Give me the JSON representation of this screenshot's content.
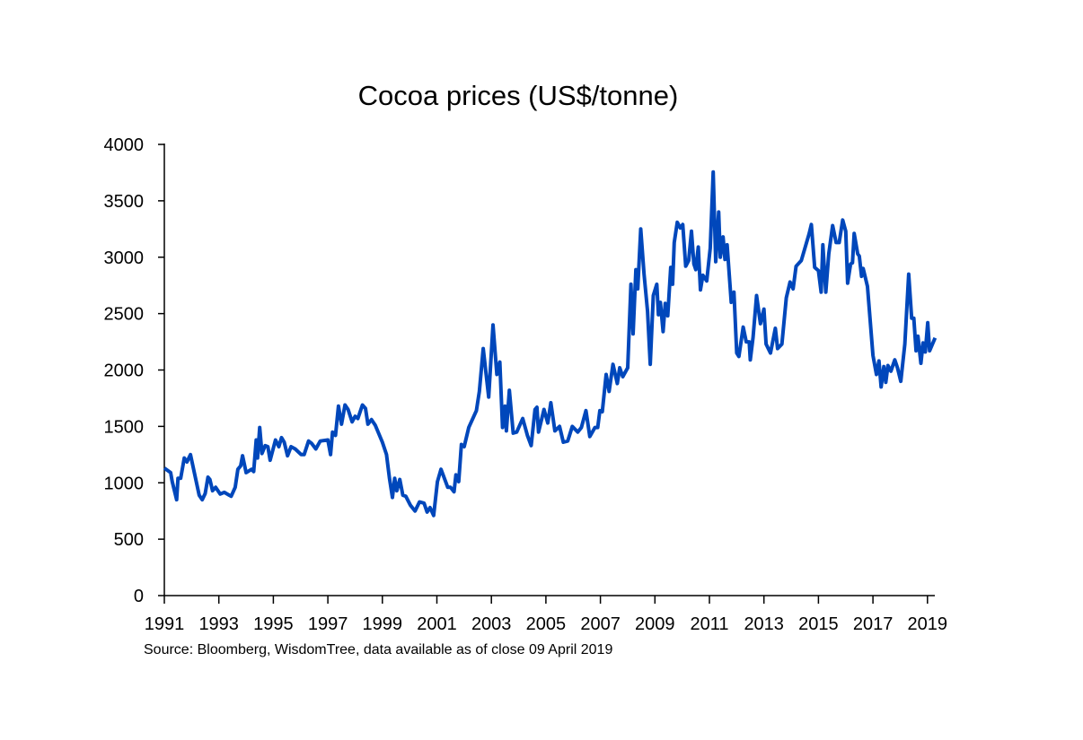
{
  "chart_data": {
    "type": "line",
    "title": "Cocoa prices (US$/tonne)",
    "xlabel": "",
    "ylabel": "",
    "source": "Source: Bloomberg, WisdomTree, data available as of close 09 April 2019",
    "xlim": [
      1991,
      2019.3
    ],
    "ylim": [
      0,
      4000
    ],
    "x_ticks": [
      "1991",
      "1993",
      "1995",
      "1997",
      "1999",
      "2001",
      "2003",
      "2005",
      "2007",
      "2009",
      "2011",
      "2013",
      "2015",
      "2017",
      "2019"
    ],
    "y_ticks": [
      "0",
      "500",
      "1000",
      "1500",
      "2000",
      "2500",
      "3000",
      "3500",
      "4000"
    ],
    "grid": false,
    "legend": "none",
    "line_color": "#0047BB",
    "series": [
      {
        "x": [
          1991.0,
          1991.23,
          1991.29,
          1991.45,
          1991.5,
          1991.6,
          1991.73,
          1991.83,
          1991.96,
          1992.1,
          1992.28,
          1992.39,
          1992.5,
          1992.6,
          1992.67,
          1992.77,
          1992.88,
          1993.05,
          1993.2,
          1993.45,
          1993.6,
          1993.7,
          1993.8,
          1993.87,
          1994.0,
          1994.2,
          1994.28,
          1994.37,
          1994.42,
          1994.5,
          1994.58,
          1994.7,
          1994.8,
          1994.88,
          1995.08,
          1995.2,
          1995.3,
          1995.4,
          1995.52,
          1995.65,
          1995.8,
          1996.02,
          1996.13,
          1996.29,
          1996.4,
          1996.56,
          1996.72,
          1997.0,
          1997.1,
          1997.17,
          1997.28,
          1997.39,
          1997.5,
          1997.63,
          1997.74,
          1997.89,
          1998.0,
          1998.1,
          1998.27,
          1998.38,
          1998.47,
          1998.6,
          1998.74,
          1999.0,
          1999.15,
          1999.26,
          1999.37,
          1999.45,
          1999.53,
          1999.64,
          1999.75,
          1999.86,
          2000.03,
          2000.2,
          2000.36,
          2000.53,
          2000.64,
          2000.75,
          2000.88,
          2001.02,
          2001.15,
          2001.4,
          2001.5,
          2001.63,
          2001.7,
          2001.8,
          2001.9,
          2002.0,
          2002.17,
          2002.45,
          2002.56,
          2002.7,
          2002.9,
          2003.06,
          2003.2,
          2003.31,
          2003.41,
          2003.5,
          2003.55,
          2003.66,
          2003.8,
          2003.93,
          2004.15,
          2004.32,
          2004.46,
          2004.6,
          2004.67,
          2004.73,
          2004.93,
          2005.07,
          2005.18,
          2005.33,
          2005.5,
          2005.64,
          2005.8,
          2005.97,
          2006.17,
          2006.3,
          2006.47,
          2006.61,
          2006.8,
          2006.9,
          2006.98,
          2007.07,
          2007.21,
          2007.32,
          2007.46,
          2007.62,
          2007.71,
          2007.82,
          2008.0,
          2008.12,
          2008.2,
          2008.3,
          2008.37,
          2008.48,
          2008.6,
          2008.73,
          2008.83,
          2008.94,
          2009.07,
          2009.13,
          2009.2,
          2009.3,
          2009.38,
          2009.47,
          2009.58,
          2009.65,
          2009.71,
          2009.82,
          2009.93,
          2010.02,
          2010.13,
          2010.24,
          2010.34,
          2010.43,
          2010.5,
          2010.59,
          2010.67,
          2010.76,
          2010.9,
          2011.03,
          2011.14,
          2011.23,
          2011.34,
          2011.4,
          2011.5,
          2011.57,
          2011.65,
          2011.8,
          2011.9,
          2012.0,
          2012.08,
          2012.24,
          2012.35,
          2012.46,
          2012.5,
          2012.6,
          2012.73,
          2012.87,
          2013.0,
          2013.08,
          2013.24,
          2013.42,
          2013.5,
          2013.66,
          2013.82,
          2013.96,
          2014.07,
          2014.18,
          2014.37,
          2014.48,
          2014.66,
          2014.74,
          2014.86,
          2015.0,
          2015.1,
          2015.16,
          2015.27,
          2015.38,
          2015.52,
          2015.65,
          2015.76,
          2015.89,
          2016.0,
          2016.07,
          2016.18,
          2016.25,
          2016.31,
          2016.44,
          2016.5,
          2016.58,
          2016.64,
          2016.8,
          2017.0,
          2017.13,
          2017.22,
          2017.3,
          2017.4,
          2017.47,
          2017.55,
          2017.66,
          2017.8,
          2017.9,
          2018.02,
          2018.17,
          2018.31,
          2018.42,
          2018.5,
          2018.58,
          2018.65,
          2018.76,
          2018.84,
          2018.92,
          2019.01,
          2019.08,
          2019.28
        ],
        "values": [
          1130,
          1090,
          1010,
          850,
          1040,
          1040,
          1220,
          1185,
          1250,
          1090,
          890,
          850,
          905,
          1050,
          1030,
          930,
          960,
          900,
          915,
          880,
          960,
          1120,
          1150,
          1240,
          1090,
          1120,
          1100,
          1380,
          1220,
          1490,
          1260,
          1330,
          1320,
          1200,
          1380,
          1320,
          1400,
          1360,
          1240,
          1320,
          1300,
          1250,
          1250,
          1370,
          1350,
          1300,
          1370,
          1380,
          1250,
          1450,
          1420,
          1680,
          1520,
          1690,
          1650,
          1540,
          1590,
          1570,
          1690,
          1660,
          1520,
          1560,
          1510,
          1360,
          1250,
          1040,
          870,
          1040,
          930,
          1030,
          890,
          880,
          800,
          750,
          830,
          820,
          740,
          780,
          710,
          1010,
          1120,
          960,
          960,
          920,
          1070,
          1010,
          1340,
          1320,
          1490,
          1640,
          1810,
          2190,
          1760,
          2400,
          1960,
          2070,
          1490,
          1680,
          1460,
          1820,
          1440,
          1450,
          1570,
          1420,
          1330,
          1650,
          1670,
          1450,
          1650,
          1530,
          1710,
          1460,
          1500,
          1360,
          1370,
          1500,
          1450,
          1490,
          1640,
          1410,
          1490,
          1490,
          1640,
          1630,
          1960,
          1810,
          2050,
          1880,
          2020,
          1940,
          2020,
          2760,
          2320,
          2890,
          2720,
          3250,
          2850,
          2520,
          2050,
          2660,
          2760,
          2490,
          2600,
          2340,
          2590,
          2480,
          2910,
          2760,
          3130,
          3310,
          3260,
          3290,
          2920,
          2970,
          3230,
          2940,
          2890,
          3090,
          2710,
          2840,
          2790,
          3080,
          3755,
          2960,
          3400,
          3000,
          3180,
          2980,
          3110,
          2600,
          2690,
          2150,
          2120,
          2380,
          2250,
          2250,
          2090,
          2290,
          2660,
          2410,
          2540,
          2230,
          2150,
          2370,
          2190,
          2230,
          2640,
          2780,
          2720,
          2920,
          2970,
          3060,
          3210,
          3290,
          2910,
          2880,
          2690,
          3110,
          2690,
          3030,
          3280,
          3130,
          3130,
          3330,
          3230,
          2770,
          2940,
          2950,
          3210,
          3030,
          3010,
          2830,
          2900,
          2740,
          2130,
          1960,
          2080,
          1850,
          2030,
          1890,
          2040,
          1990,
          2090,
          2020,
          1900,
          2230,
          2850,
          2460,
          2460,
          2170,
          2300,
          2060,
          2240,
          2160,
          2420,
          2170,
          2285
        ]
      }
    ]
  }
}
